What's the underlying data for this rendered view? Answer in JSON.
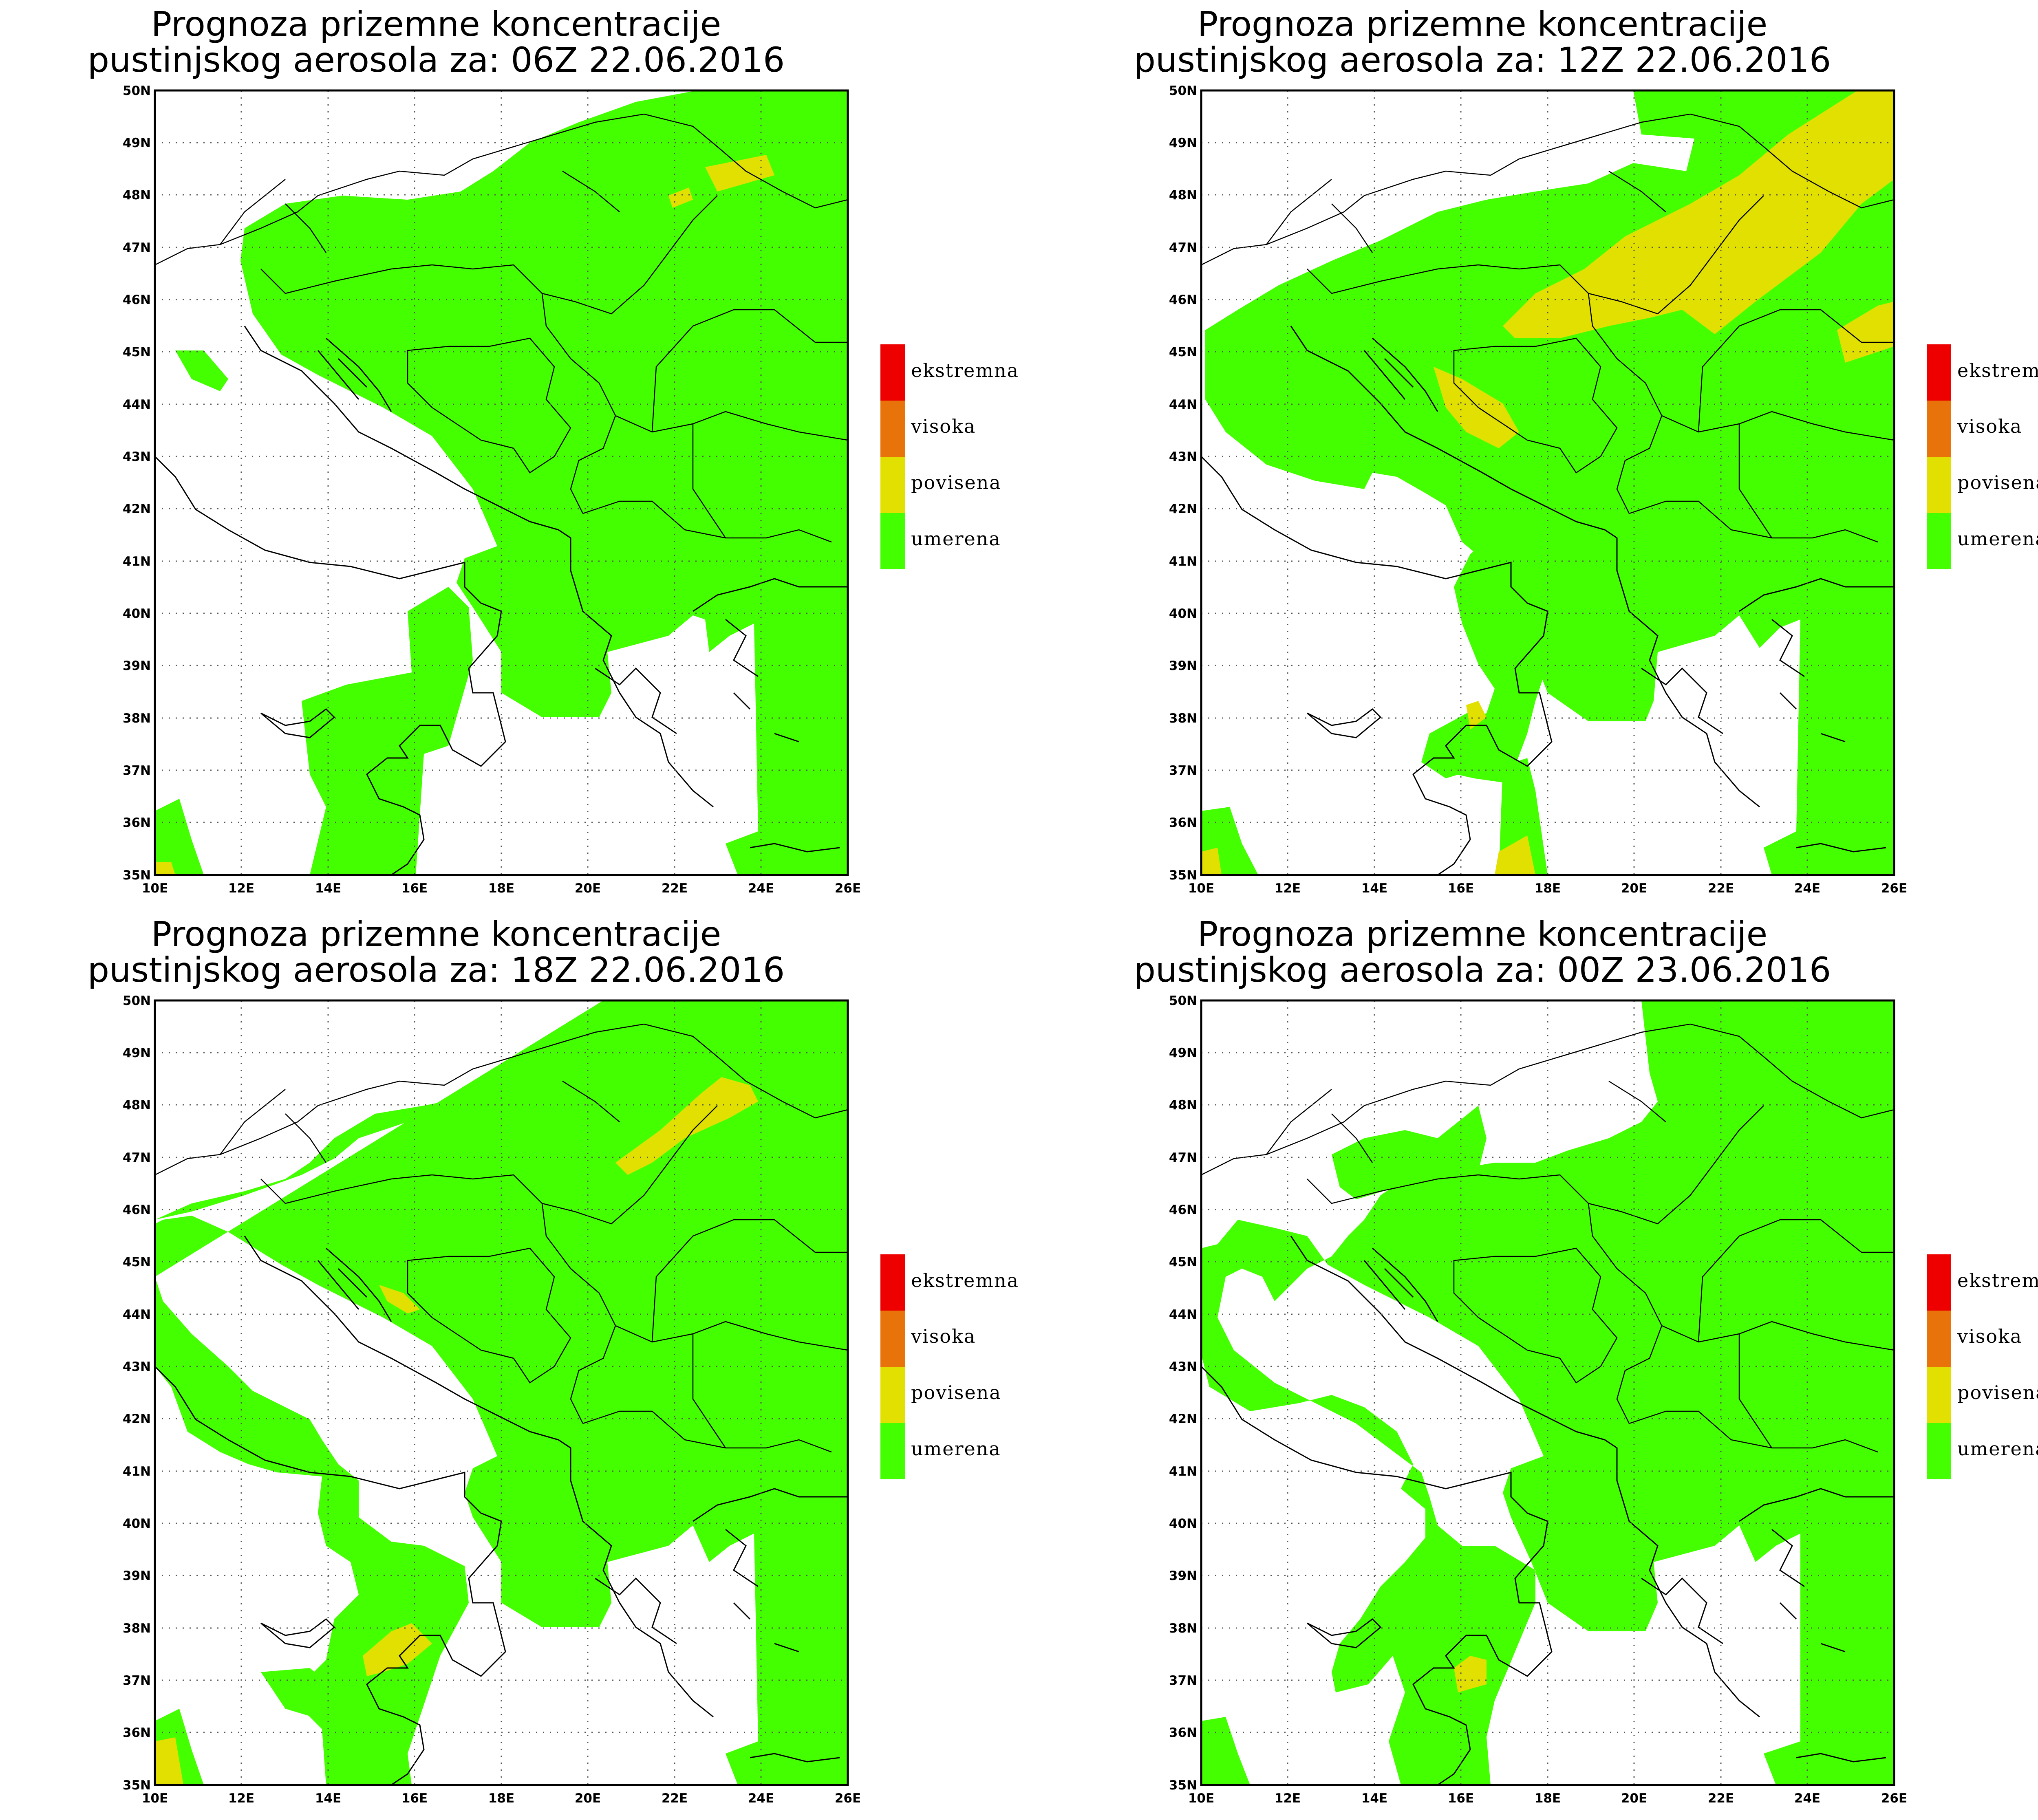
{
  "panels": [
    {
      "id": "p1",
      "title_line1": "Prognoza prizemne koncentracije",
      "title_line2": "pustinjskog aerosola za: 06Z 22.06.2016"
    },
    {
      "id": "p2",
      "title_line1": "Prognoza prizemne koncentracije",
      "title_line2": "pustinjskog aerosola za: 12Z 22.06.2016"
    },
    {
      "id": "p3",
      "title_line1": "Prognoza prizemne koncentracije",
      "title_line2": "pustinjskog aerosola za: 18Z 22.06.2016"
    },
    {
      "id": "p4",
      "title_line1": "Prognoza prizemne koncentracije",
      "title_line2": "pustinjskog aerosola za: 00Z 23.06.2016"
    }
  ],
  "axes": {
    "lat_labels": [
      "50N",
      "49N",
      "48N",
      "47N",
      "46N",
      "45N",
      "44N",
      "43N",
      "42N",
      "41N",
      "40N",
      "39N",
      "38N",
      "37N",
      "36N",
      "35N"
    ],
    "lon_labels": [
      "10E",
      "12E",
      "14E",
      "16E",
      "18E",
      "20E",
      "22E",
      "24E",
      "26E"
    ],
    "lat_range": [
      35,
      50
    ],
    "lon_range": [
      10,
      26
    ]
  },
  "legend": [
    {
      "label": "ekstremna",
      "color": "#ee0000"
    },
    {
      "label": "visoka",
      "color": "#e8730a"
    },
    {
      "label": "povisena",
      "color": "#e2e000"
    },
    {
      "label": "umerena",
      "color": "#44ff00"
    }
  ],
  "colors": {
    "umerena": "#44ff00",
    "povisena": "#e2e000",
    "ocean": "#ffffff"
  }
}
